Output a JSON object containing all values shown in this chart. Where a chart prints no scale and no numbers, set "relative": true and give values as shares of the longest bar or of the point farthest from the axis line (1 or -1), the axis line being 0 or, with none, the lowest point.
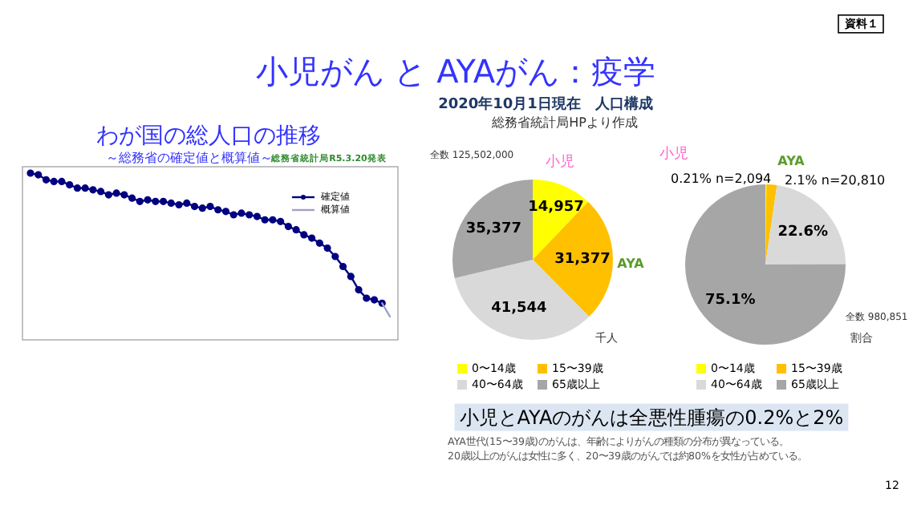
{
  "chart_data": [
    {
      "type": "other",
      "title": "小児がん と AYAがん：疫学",
      "annotations": [
        "資料１",
        "小児とAYAのがんは全悪性腫瘍の0.2%と2%",
        "AYA世代(15〜39歳)のがんは、年齢によりがんの種類の分布が異なっている。",
        "20歳以上のがんは女性に多く、20〜39歳のがんでは約80%を女性が占めている。",
        "12"
      ]
    },
    {
      "type": "line",
      "title": "わが国の総人口の推移",
      "subtitle": "～総務省の確定値と概算値～",
      "annotations": [
        "総務省統計局R5.3.20発表"
      ],
      "relative": true,
      "legend": "top right",
      "categories": [
        null,
        null,
        null,
        null,
        null,
        null,
        null,
        null,
        null,
        null,
        null,
        null,
        null,
        null,
        null,
        null,
        null,
        null,
        null,
        null,
        null,
        null,
        null,
        null,
        null,
        null,
        null,
        null,
        null,
        null,
        null,
        null,
        null,
        null,
        null,
        null,
        null,
        null,
        null,
        null,
        null,
        null,
        null,
        null,
        null,
        null,
        null
      ],
      "series": [
        {
          "name": "確定値",
          "color": "#000080",
          "marker": "circle",
          "values": [
            1.0,
            0.99,
            0.96,
            0.95,
            0.95,
            0.93,
            0.91,
            0.91,
            0.9,
            0.89,
            0.87,
            0.88,
            0.87,
            0.85,
            0.83,
            0.84,
            0.83,
            0.83,
            0.82,
            0.81,
            0.82,
            0.8,
            0.79,
            0.8,
            0.78,
            0.77,
            0.75,
            0.76,
            0.75,
            0.74,
            0.72,
            0.72,
            0.71,
            0.68,
            0.66,
            0.63,
            0.61,
            0.58,
            0.55,
            0.5,
            0.44,
            0.38,
            0.3,
            0.25,
            0.24,
            0.22,
            null
          ]
        },
        {
          "name": "概算値",
          "color": "#a0a0c8",
          "marker": "none",
          "values": [
            null,
            null,
            null,
            null,
            null,
            null,
            null,
            null,
            null,
            null,
            null,
            null,
            null,
            null,
            null,
            null,
            null,
            null,
            null,
            null,
            null,
            null,
            null,
            null,
            null,
            null,
            null,
            null,
            null,
            null,
            null,
            null,
            null,
            null,
            null,
            null,
            null,
            null,
            null,
            null,
            null,
            null,
            null,
            null,
            null,
            0.22,
            0.14
          ]
        }
      ]
    },
    {
      "type": "pie",
      "title": "2020年10月1日現在　人口構成",
      "subtitle": "総務省統計局HPより作成",
      "categories": [
        "0〜14歳",
        "15〜39歳",
        "40〜64歳",
        "65歳以上"
      ],
      "values": [
        14957,
        31377,
        41544,
        35377
      ],
      "colors": [
        "#ffff00",
        "#ffc000",
        "#d9d9d9",
        "#a6a6a6"
      ],
      "value_labels": [
        "14,957",
        "31,377",
        "41,544",
        "35,377"
      ],
      "legend": "bottom",
      "annotations": [
        "全数 125,502,000",
        "小児",
        "AYA",
        "千人"
      ]
    },
    {
      "type": "pie",
      "categories": [
        "0〜14歳",
        "15〜39歳",
        "40〜64歳",
        "65歳以上"
      ],
      "values": [
        0.21,
        2.1,
        22.6,
        75.1
      ],
      "value_labels": [
        null,
        null,
        "22.6%",
        "75.1%"
      ],
      "colors": [
        "#ffff00",
        "#ffc000",
        "#d9d9d9",
        "#a6a6a6"
      ],
      "legend": "bottom",
      "annotations": [
        "小児",
        "0.21% n=2,094",
        "AYA",
        "2.1% n=20,810",
        "全数 980,851",
        "割合"
      ]
    }
  ]
}
